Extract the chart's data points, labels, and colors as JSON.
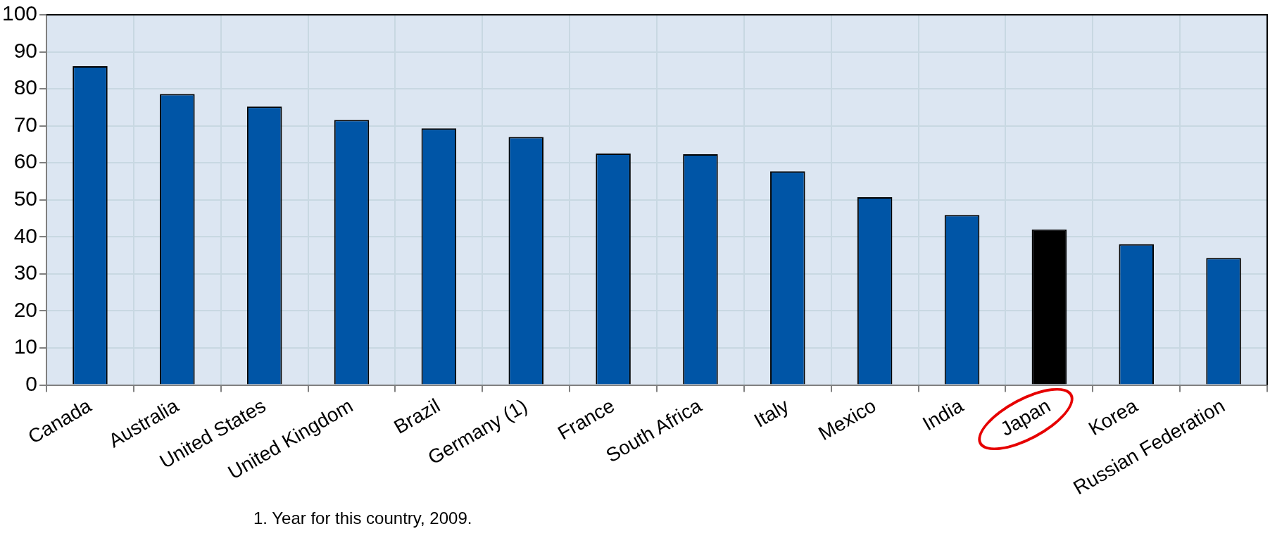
{
  "chart_data": {
    "type": "bar",
    "categories": [
      "Canada",
      "Australia",
      "United States",
      "United Kingdom",
      "Brazil",
      "Germany (1)",
      "France",
      "South Africa",
      "Italy",
      "Mexico",
      "India",
      "Japan",
      "Korea",
      "Russian Federation"
    ],
    "values": [
      86.1,
      78.6,
      75.2,
      71.6,
      69.3,
      67.0,
      62.5,
      62.3,
      57.7,
      50.7,
      45.9,
      42.0,
      38.0,
      34.3
    ],
    "colors": [
      "#0055a6",
      "#0055a6",
      "#0055a6",
      "#0055a6",
      "#0055a6",
      "#0055a6",
      "#0055a6",
      "#0055a6",
      "#0055a6",
      "#0055a6",
      "#0055a6",
      "#000000",
      "#0055a6",
      "#0055a6"
    ],
    "ylim": [
      0,
      100
    ],
    "yticks": [
      0,
      10,
      20,
      30,
      40,
      50,
      60,
      70,
      80,
      90,
      100
    ],
    "grid": true,
    "legend": false,
    "annotations": [
      "1. Year for this country, 2009."
    ]
  }
}
